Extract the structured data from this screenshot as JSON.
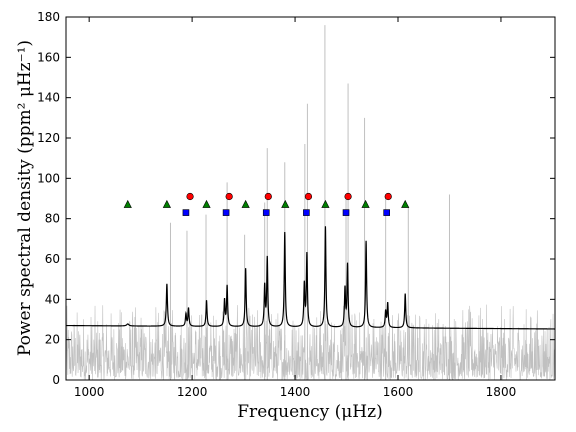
{
  "chart_data": {
    "type": "line",
    "xlabel": "Frequency (μHz)",
    "ylabel": "Power spectral density (ppm² μHz⁻¹)",
    "xlim": [
      955,
      1905
    ],
    "ylim": [
      0,
      180
    ],
    "xticks": [
      1000,
      1200,
      1400,
      1600,
      1800
    ],
    "yticks": [
      0,
      20,
      40,
      60,
      80,
      100,
      120,
      140,
      160,
      180
    ],
    "grid": false,
    "legend": "none",
    "colors": {
      "noise": "#c0c0c0",
      "model": "#000000",
      "l0_marker": "#ff0000",
      "l1_marker": "#0000ff",
      "l2_marker": "#008000"
    },
    "series": [
      {
        "kind": "noise-spectrum",
        "baseline": 27,
        "typical_max": 62,
        "spikes": [
          {
            "x": 1158,
            "y": 78
          },
          {
            "x": 1190,
            "y": 74
          },
          {
            "x": 1227,
            "y": 82
          },
          {
            "x": 1268,
            "y": 98
          },
          {
            "x": 1302,
            "y": 72
          },
          {
            "x": 1341,
            "y": 88
          },
          {
            "x": 1346,
            "y": 115
          },
          {
            "x": 1380,
            "y": 108
          },
          {
            "x": 1419,
            "y": 117
          },
          {
            "x": 1424,
            "y": 137
          },
          {
            "x": 1458,
            "y": 176
          },
          {
            "x": 1499,
            "y": 90
          },
          {
            "x": 1503,
            "y": 147
          },
          {
            "x": 1535,
            "y": 130
          },
          {
            "x": 1576,
            "y": 90
          },
          {
            "x": 1620,
            "y": 86
          },
          {
            "x": 1700,
            "y": 92
          }
        ]
      },
      {
        "kind": "model-fit",
        "background": [
          {
            "x": 955,
            "y": 27.0
          },
          {
            "x": 1905,
            "y": 25.3
          }
        ],
        "peaks": [
          {
            "x": 1075,
            "height": 1.0,
            "width": 2.5
          },
          {
            "x": 1151,
            "height": 21,
            "width": 1.3
          },
          {
            "x": 1188,
            "height": 6,
            "width": 1.2
          },
          {
            "x": 1193,
            "height": 9,
            "width": 1.2
          },
          {
            "x": 1228,
            "height": 13,
            "width": 1.2
          },
          {
            "x": 1263,
            "height": 13,
            "width": 1.2
          },
          {
            "x": 1268,
            "height": 20,
            "width": 1.2
          },
          {
            "x": 1304,
            "height": 29,
            "width": 1.2
          },
          {
            "x": 1341,
            "height": 20,
            "width": 1.2
          },
          {
            "x": 1346,
            "height": 34,
            "width": 1.2
          },
          {
            "x": 1380,
            "height": 47,
            "width": 1.2
          },
          {
            "x": 1418,
            "height": 21,
            "width": 1.2
          },
          {
            "x": 1423,
            "height": 36,
            "width": 1.2
          },
          {
            "x": 1459,
            "height": 50,
            "width": 1.2
          },
          {
            "x": 1497,
            "height": 19,
            "width": 1.2
          },
          {
            "x": 1502,
            "height": 31,
            "width": 1.2
          },
          {
            "x": 1538,
            "height": 43,
            "width": 1.2
          },
          {
            "x": 1576,
            "height": 8,
            "width": 1.2
          },
          {
            "x": 1580,
            "height": 12,
            "width": 1.2
          },
          {
            "x": 1614,
            "height": 17,
            "width": 1.2
          }
        ]
      }
    ],
    "markers": [
      {
        "shape": "circle",
        "color": "#ff0000",
        "y": 91,
        "x": [
          1196,
          1272,
          1348,
          1426,
          1503,
          1581
        ]
      },
      {
        "shape": "square",
        "color": "#0000ff",
        "y": 83,
        "x": [
          1188,
          1266,
          1344,
          1422,
          1499,
          1578
        ]
      },
      {
        "shape": "triangle",
        "color": "#008000",
        "y": 87,
        "x": [
          1075,
          1151,
          1228,
          1304,
          1381,
          1459,
          1537,
          1614
        ]
      }
    ]
  }
}
